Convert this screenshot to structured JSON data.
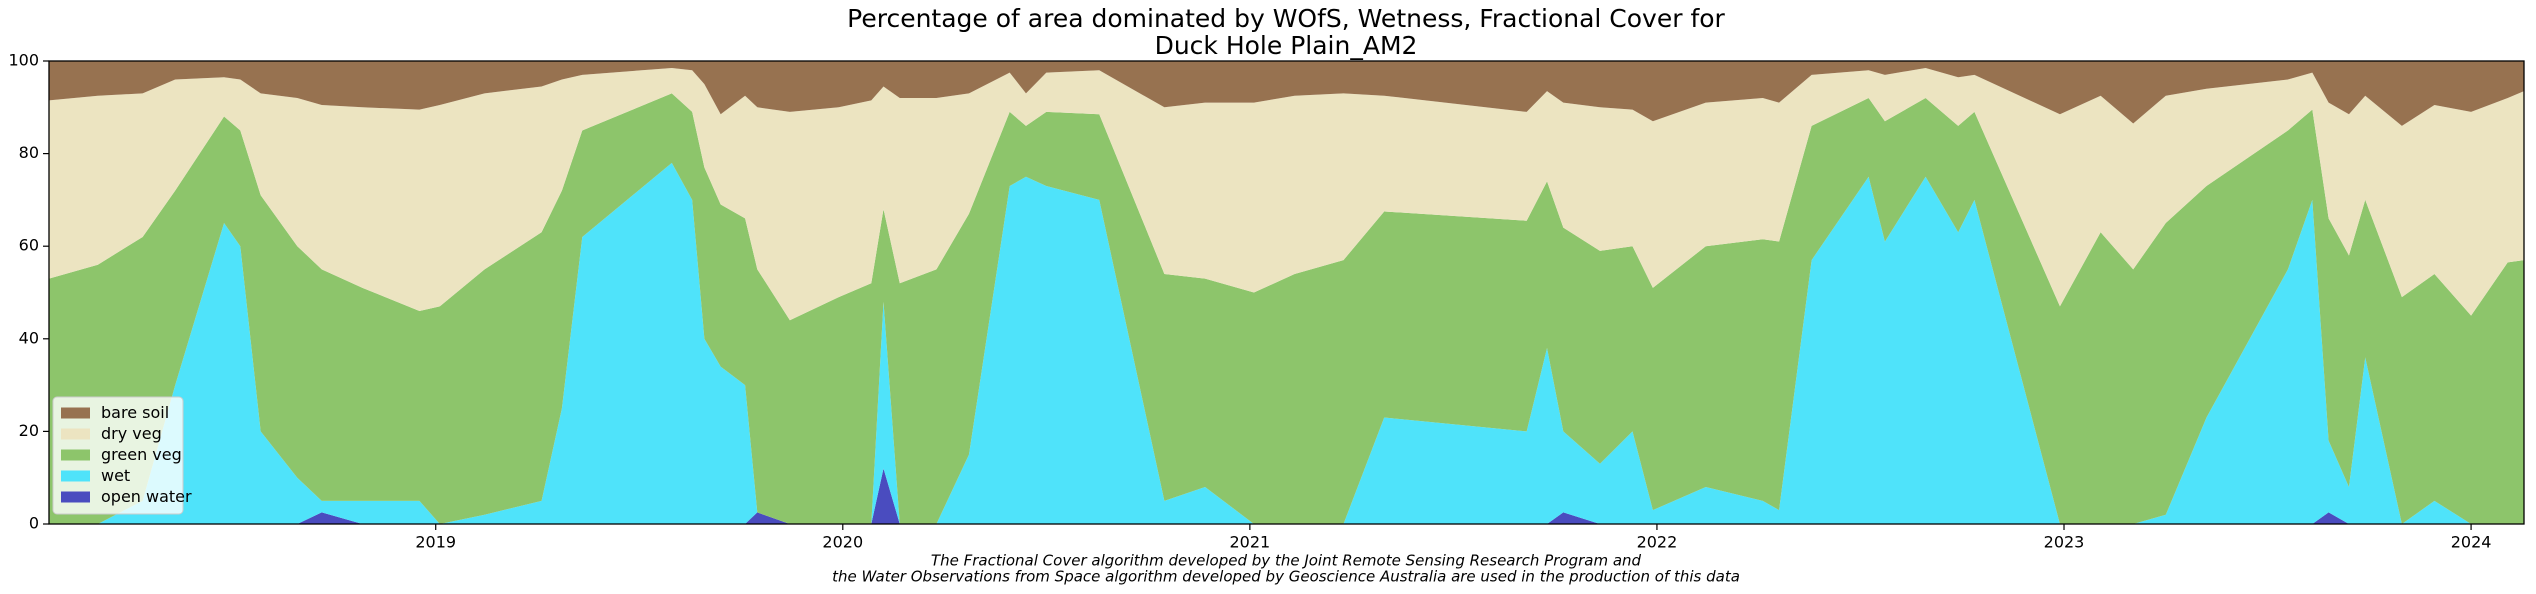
{
  "chart_data": {
    "type": "stacked_area",
    "title": [
      "Percentage of area dominated by WOfS, Wetness, Fractional Cover for",
      "Duck Hole Plain_AM2"
    ],
    "footnote": [
      "The Fractional Cover algorithm developed by the Joint Remote Sensing Research Program and",
      "the Water Observations from Space algorithm developed by Geoscience Australia are used in the production of this data"
    ],
    "x": [
      2018.05,
      2018.17,
      2018.28,
      2018.36,
      2018.48,
      2018.52,
      2018.57,
      2018.66,
      2018.72,
      2018.82,
      2018.96,
      2019.01,
      2019.12,
      2019.26,
      2019.31,
      2019.36,
      2019.58,
      2019.63,
      2019.66,
      2019.7,
      2019.76,
      2019.79,
      2019.87,
      2019.99,
      2020.07,
      2020.1,
      2020.14,
      2020.23,
      2020.31,
      2020.41,
      2020.45,
      2020.5,
      2020.63,
      2020.79,
      2020.89,
      2021.01,
      2021.11,
      2021.23,
      2021.33,
      2021.68,
      2021.73,
      2021.77,
      2021.86,
      2021.94,
      2021.99,
      2022.12,
      2022.26,
      2022.3,
      2022.38,
      2022.52,
      2022.56,
      2022.66,
      2022.74,
      2022.78,
      2022.99,
      2023.09,
      2023.17,
      2023.25,
      2023.35,
      2023.55,
      2023.61,
      2023.65,
      2023.7,
      2023.74,
      2023.83,
      2023.91,
      2024.0,
      2024.09,
      2024.13
    ],
    "series": [
      {
        "name": "bare soil",
        "color": "#977250",
        "values": [
          8.5,
          7.5,
          7,
          4,
          3.5,
          4,
          7,
          8,
          9.5,
          10,
          10.5,
          9.5,
          7,
          5.5,
          4,
          3,
          1.5,
          2,
          5,
          11.5,
          7.5,
          10,
          11,
          10,
          8.5,
          5.5,
          8,
          8,
          7,
          2.5,
          7,
          2.5,
          2,
          10,
          9,
          9,
          7.5,
          7,
          7.5,
          11,
          6.5,
          9,
          10,
          10.5,
          13,
          9,
          8,
          9,
          3,
          2,
          3,
          1.5,
          3.5,
          3,
          11.5,
          7.5,
          13.5,
          7.5,
          6,
          4,
          2.5,
          9,
          11.5,
          7.5,
          14,
          9.5,
          11,
          8,
          6.5
        ]
      },
      {
        "name": "dry veg",
        "color": "#ece4c1",
        "values": [
          38.5,
          36.5,
          31,
          24,
          8.5,
          11,
          22,
          32,
          35.5,
          39,
          43.5,
          43.5,
          38,
          31.5,
          24,
          12,
          5.5,
          9,
          18,
          19.5,
          26.5,
          35,
          45,
          41,
          39.5,
          26.5,
          40,
          37,
          26,
          8.5,
          7,
          8.5,
          9.5,
          36,
          38,
          41,
          38.5,
          36,
          25,
          23.5,
          19.5,
          27,
          31,
          29.5,
          36,
          31,
          30.5,
          30,
          11,
          6,
          10,
          6.5,
          10.5,
          8,
          41.5,
          29.5,
          31.5,
          27.5,
          21,
          11,
          8,
          25,
          30.5,
          22.5,
          37,
          36.5,
          44,
          35.5,
          36.5
        ]
      },
      {
        "name": "green veg",
        "color": "#8dc56b",
        "values": [
          53,
          56,
          57,
          42,
          23,
          25,
          51,
          50,
          50,
          46,
          41,
          47,
          53,
          58,
          47,
          23,
          15,
          19,
          37,
          35,
          36,
          52.5,
          44,
          49,
          52,
          20,
          52,
          55,
          52,
          16,
          11,
          16,
          18.5,
          49,
          45,
          50,
          54,
          57,
          44.5,
          45.5,
          36,
          44,
          46,
          40,
          48,
          52,
          56.5,
          58,
          29,
          17,
          26,
          17,
          23,
          19,
          47,
          63,
          55,
          63,
          50,
          30,
          19.5,
          48,
          50,
          34,
          49,
          49,
          45,
          56.5,
          57
        ]
      },
      {
        "name": "wet",
        "color": "#4fe3fa",
        "values": [
          0,
          0,
          5,
          30,
          65,
          60,
          20,
          10,
          2.5,
          5,
          5,
          0,
          2,
          5,
          25,
          62,
          78,
          70,
          40,
          34,
          30,
          0,
          0,
          0,
          0,
          36,
          0,
          0,
          15,
          73,
          75,
          73,
          70,
          5,
          8,
          0,
          0,
          0,
          23,
          20,
          38,
          17.5,
          13,
          20,
          3,
          8,
          5,
          3,
          57,
          75,
          61,
          75,
          63,
          70,
          0,
          0,
          0,
          2,
          23,
          55,
          70,
          15.5,
          8,
          36,
          0,
          5,
          0,
          0,
          0
        ]
      },
      {
        "name": "open water",
        "color": "#4a4cbf",
        "values": [
          0,
          0,
          0,
          0,
          0,
          0,
          0,
          0,
          2.5,
          0,
          0,
          0,
          0,
          0,
          0,
          0,
          0,
          0,
          0,
          0,
          0,
          2.5,
          0,
          0,
          0,
          12,
          0,
          0,
          0,
          0,
          0,
          0,
          0,
          0,
          0,
          0,
          0,
          0,
          0,
          0,
          0,
          2.5,
          0,
          0,
          0,
          0,
          0,
          0,
          0,
          0,
          0,
          0,
          0,
          0,
          0,
          0,
          0,
          0,
          0,
          0,
          0,
          2.5,
          0,
          0,
          0,
          0,
          0,
          0,
          0
        ]
      }
    ],
    "xlim": [
      2018.05,
      2024.13
    ],
    "xticks": [
      2019,
      2020,
      2021,
      2022,
      2023,
      2024
    ],
    "ylim": [
      0,
      100
    ],
    "yticks": [
      0,
      20,
      40,
      60,
      80,
      100
    ],
    "legend": "lower left",
    "grid": false
  }
}
